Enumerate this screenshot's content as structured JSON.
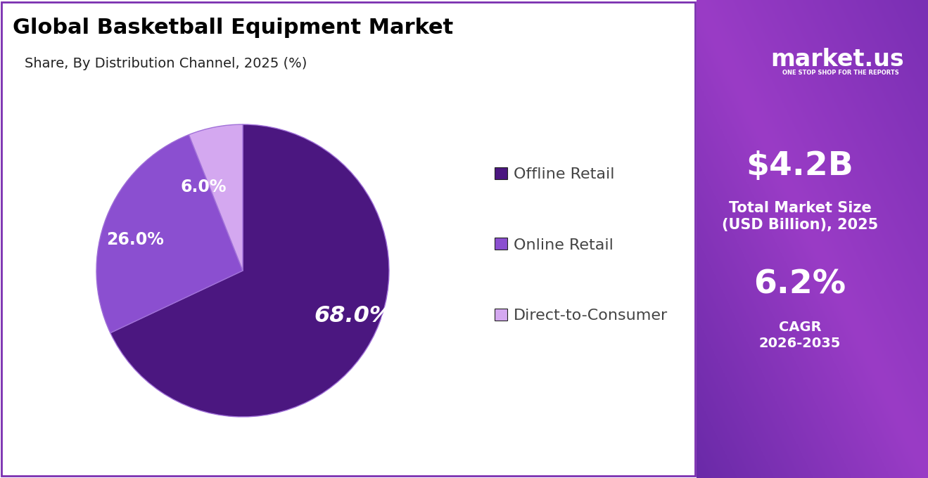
{
  "chart_data": {
    "type": "pie",
    "title": "Global Basketball Equipment Market",
    "subtitle": "Share, By Distribution Channel, 2025 (%)",
    "categories": [
      "Offline Retail",
      "Online Retail",
      "Direct-to-Consumer"
    ],
    "values": [
      68.0,
      26.0,
      6.0
    ],
    "value_labels": [
      "68.0%",
      "26.0%",
      "6.0%"
    ],
    "colors": [
      "#4b1780",
      "#8b4fd0",
      "#d4a8f0"
    ],
    "data_labels": true,
    "legend": "center left"
  },
  "side_panel": {
    "brand": "market.us",
    "tagline": "ONE STOP SHOP FOR THE REPORTS",
    "market_size": "$4.2B",
    "market_size_label": [
      "Total Market Size",
      "(USD Billion), 2025"
    ],
    "cagr": "6.2%",
    "cagr_label": [
      "CAGR",
      "2026-2035"
    ]
  }
}
